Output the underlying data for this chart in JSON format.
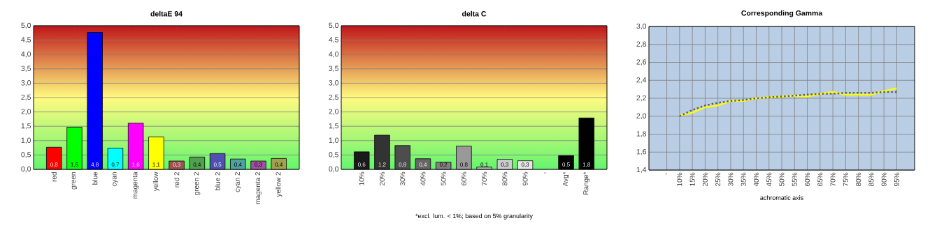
{
  "chart_data": [
    {
      "type": "bar",
      "title": "deltaE 94",
      "categories": [
        "red",
        "green",
        "blue",
        "cyan",
        "magenta",
        "yellow",
        "red 2",
        "green 2",
        "blue 2",
        "cyan 2",
        "magenta 2",
        "yellow 2"
      ],
      "values": [
        0.77,
        1.47,
        4.77,
        0.74,
        1.61,
        1.13,
        0.29,
        0.43,
        0.55,
        0.36,
        0.29,
        0.38
      ],
      "colors": [
        "#ff0000",
        "#00ff00",
        "#0000ff",
        "#00ffff",
        "#ff00ff",
        "#ffff00",
        "#a05050",
        "#50a050",
        "#5050b0",
        "#50a0a0",
        "#a050a0",
        "#a0a050"
      ],
      "value_labels": [
        "0,8",
        "1,5",
        "4,8",
        "0,7",
        "1,6",
        "1,1",
        "0,3",
        "0,4",
        "0,5",
        "0,4",
        "0,3",
        "0,4"
      ],
      "ylim": [
        0,
        5
      ],
      "yticks": [
        {
          "value": 0,
          "label": "0,0"
        },
        {
          "value": 0.5,
          "label": "0,5"
        },
        {
          "value": 1,
          "label": "1,0"
        },
        {
          "value": 1.5,
          "label": "1,5"
        },
        {
          "value": 2,
          "label": "2,0"
        },
        {
          "value": 2.5,
          "label": "2,5"
        },
        {
          "value": 3,
          "label": "3,0"
        },
        {
          "value": 3.5,
          "label": "3,5"
        },
        {
          "value": 4,
          "label": "4,0"
        },
        {
          "value": 4.5,
          "label": "4,5"
        },
        {
          "value": 5,
          "label": "5,0"
        }
      ],
      "grid": "y"
    },
    {
      "type": "bar",
      "title": "delta C",
      "categories": [
        "10%",
        "20%",
        "30%",
        "40%",
        "50%",
        "60%",
        "70%",
        "80%",
        "90%",
        "-",
        "Avg*",
        "Range*"
      ],
      "values": [
        0.61,
        1.19,
        0.83,
        0.37,
        0.25,
        0.81,
        0.08,
        0.35,
        0.3,
        null,
        0.48,
        1.79
      ],
      "colors": [
        "#1a1a1a",
        "#333333",
        "#4d4d4d",
        "#666666",
        "#808080",
        "#999999",
        "#b3b3b3",
        "#cccccc",
        "#e6e6e6",
        null,
        "#000000",
        "#000000"
      ],
      "value_labels": [
        "0,6",
        "1,2",
        "0,8",
        "0,4",
        "0,2",
        "0,8",
        "0,1",
        "0,3",
        "0,3",
        null,
        "0,5",
        "1,8"
      ],
      "ylim": [
        0,
        5
      ],
      "yticks": [
        {
          "value": 0,
          "label": "0,0"
        },
        {
          "value": 0.5,
          "label": "0,5"
        },
        {
          "value": 1,
          "label": "1,0"
        },
        {
          "value": 1.5,
          "label": "1,5"
        },
        {
          "value": 2,
          "label": "2,0"
        },
        {
          "value": 2.5,
          "label": "2,5"
        },
        {
          "value": 3,
          "label": "3,0"
        },
        {
          "value": 3.5,
          "label": "3,5"
        },
        {
          "value": 4,
          "label": "4,0"
        },
        {
          "value": 4.5,
          "label": "4,5"
        },
        {
          "value": 5,
          "label": "5,0"
        }
      ],
      "grid": "y",
      "annotations": [
        "*excl. lum. < 1%; based on 5% granularity"
      ]
    },
    {
      "type": "line",
      "title": "Corresponding Gamma",
      "xlabel": "achromatic axis",
      "categories": [
        "-",
        "10%",
        "15%",
        "20%",
        "25%",
        "30%",
        "35%",
        "40%",
        "45%",
        "50%",
        "55%",
        "60%",
        "65%",
        "70%",
        "75%",
        "80%",
        "85%",
        "90%",
        "95%"
      ],
      "series": [
        {
          "color": "#ffff00",
          "line_style": "solid",
          "values": [
            null,
            2.01,
            2.04,
            2.1,
            2.12,
            2.17,
            2.17,
            2.2,
            2.21,
            2.22,
            2.23,
            2.22,
            2.25,
            2.27,
            2.24,
            2.24,
            2.24,
            2.28,
            2.31
          ]
        },
        {
          "color": "#606060",
          "line_style": "dotted",
          "values": [
            null,
            2.0,
            2.07,
            2.12,
            2.15,
            2.17,
            2.18,
            2.2,
            2.21,
            2.22,
            2.23,
            2.24,
            2.25,
            2.25,
            2.26,
            2.26,
            2.26,
            2.27,
            2.27
          ]
        }
      ],
      "ylim": [
        1.4,
        3.0
      ],
      "yticks": [
        {
          "value": 1.4,
          "label": "1,4"
        },
        {
          "value": 1.6,
          "label": "1,6"
        },
        {
          "value": 1.8,
          "label": "1,8"
        },
        {
          "value": 2.0,
          "label": "2,0"
        },
        {
          "value": 2.2,
          "label": "2,2"
        },
        {
          "value": 2.4,
          "label": "2,4"
        },
        {
          "value": 2.6,
          "label": "2,6"
        },
        {
          "value": 2.8,
          "label": "2,8"
        },
        {
          "value": 3.0,
          "label": "3,0"
        }
      ],
      "grid": true
    }
  ]
}
